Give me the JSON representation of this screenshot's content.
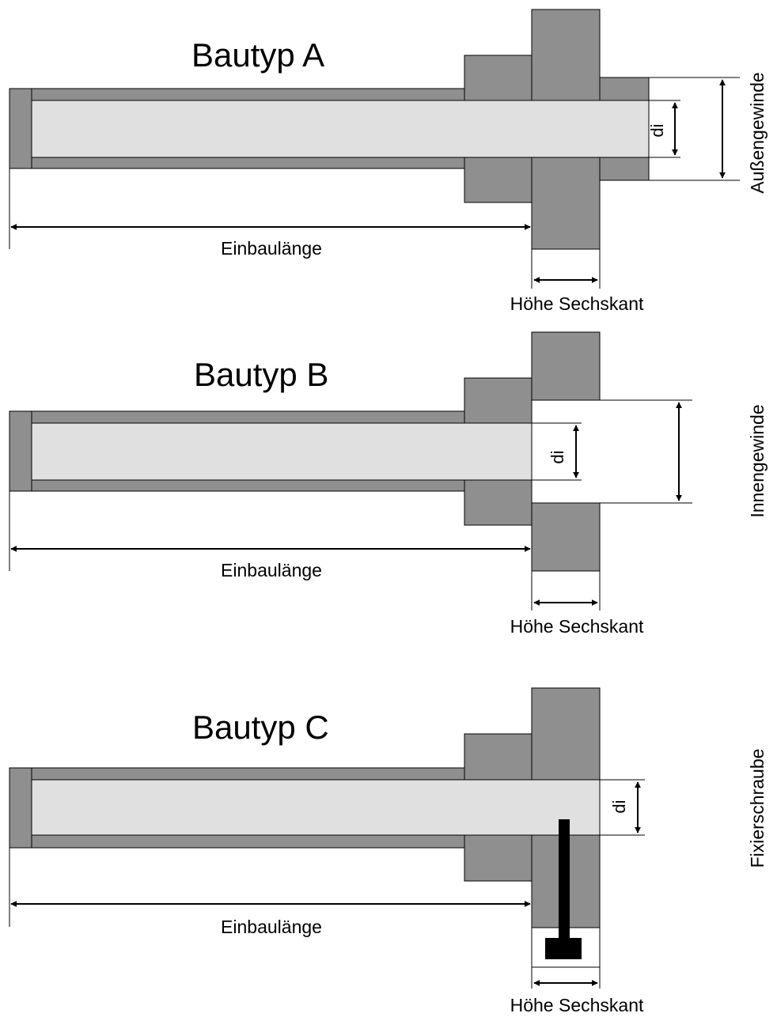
{
  "diagram": {
    "variants": [
      {
        "id": "a",
        "title": "Bautyp A",
        "install_length_label": "Einbaulänge",
        "hex_height_label": "Höhe Sechskant",
        "di_label": "di",
        "thread_label": "Außengewinde"
      },
      {
        "id": "b",
        "title": "Bautyp B",
        "install_length_label": "Einbaulänge",
        "hex_height_label": "Höhe Sechskant",
        "di_label": "di",
        "thread_label": "Innengewinde"
      },
      {
        "id": "c",
        "title": "Bautyp C",
        "install_length_label": "Einbaulänge",
        "hex_height_label": "Höhe Sechskant",
        "di_label": "di",
        "thread_label": "Fixierschraube"
      }
    ]
  }
}
